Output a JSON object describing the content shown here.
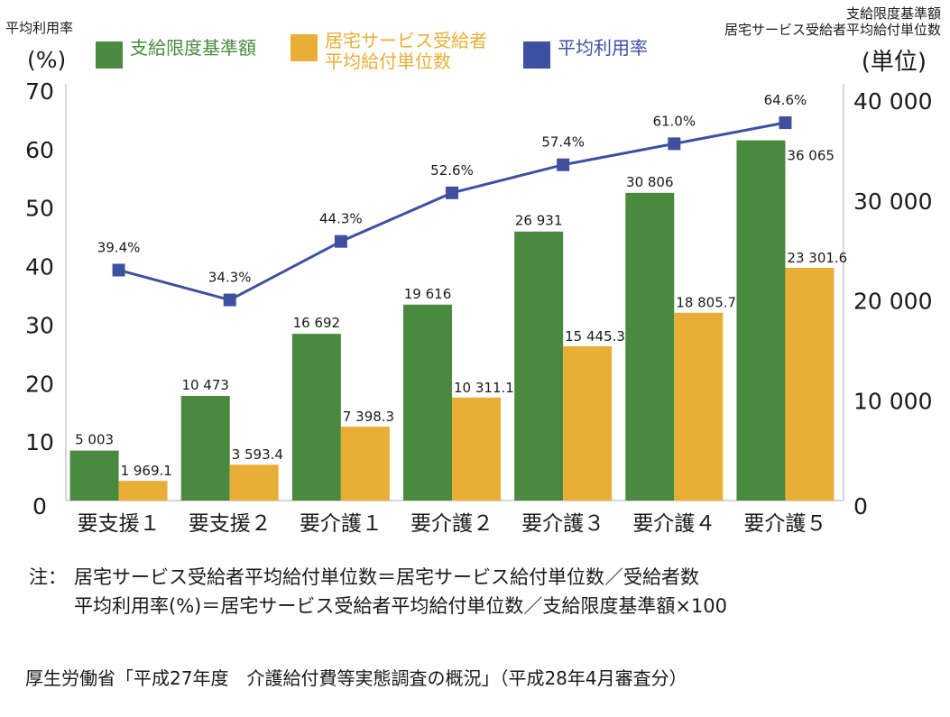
{
  "header": {
    "left_axis_title": "平均利用率",
    "left_axis_unit": "(%)",
    "right_axis_title_line1": "支給限度基準額",
    "right_axis_title_line2": "居宅サービス受給者平均給付単位数",
    "right_axis_unit": "(単位)"
  },
  "legend": [
    {
      "label": "支給限度基準額",
      "color": "#4a8a3f"
    },
    {
      "label": "居宅サービス受給者\n平均給付単位数",
      "color": "#e9ae36"
    },
    {
      "label": "平均利用率",
      "color": "#3f50a0"
    }
  ],
  "chart_data": {
    "type": "bar",
    "categories": [
      "要支援１",
      "要支援２",
      "要介護１",
      "要介護２",
      "要介護３",
      "要介護４",
      "要介護５"
    ],
    "series": [
      {
        "name": "支給限度基準額",
        "axis": "right",
        "chart": "bar",
        "color": "#4a8a3f",
        "values": [
          5003,
          10473,
          16692,
          19616,
          26931,
          30806,
          36065
        ],
        "labels": [
          "5 003",
          "10 473",
          "16 692",
          "19 616",
          "26 931",
          "30 806",
          "36 065"
        ]
      },
      {
        "name": "居宅サービス受給者平均給付単位数",
        "axis": "right",
        "chart": "bar",
        "color": "#e9ae36",
        "values": [
          1969.1,
          3593.4,
          7398.3,
          10311.1,
          15445.3,
          18805.7,
          23301.6
        ],
        "labels": [
          "1 969.1",
          "3 593.4",
          "7 398.3",
          "10 311.1",
          "15 445.3",
          "18 805.7",
          "23 301.6"
        ]
      },
      {
        "name": "平均利用率",
        "axis": "left",
        "chart": "line",
        "color": "#3f50a0",
        "values": [
          39.4,
          34.3,
          44.3,
          52.6,
          57.4,
          61.0,
          64.6
        ],
        "labels": [
          "39.4%",
          "34.3%",
          "44.3%",
          "52.6%",
          "57.4%",
          "61.0%",
          "64.6%"
        ]
      }
    ],
    "y_left": {
      "ylim": [
        0,
        70
      ],
      "ticks": [
        0,
        10,
        20,
        30,
        40,
        50,
        60,
        70
      ],
      "tick_labels": [
        "0",
        "10",
        "20",
        "30",
        "40",
        "50",
        "60",
        "70"
      ]
    },
    "y_right": {
      "ylim": [
        0,
        40000
      ],
      "ticks": [
        0,
        10000,
        20000,
        30000,
        40000
      ],
      "tick_labels": [
        "0",
        "10 000",
        "20 000",
        "30 000",
        "40 000"
      ]
    },
    "grid": false,
    "legend_position": "top"
  },
  "notes": {
    "prefix": "注：",
    "line1": "居宅サービス受給者平均給付単位数＝居宅サービス給付単位数／受給者数",
    "line2": "平均利用率(%)＝居宅サービス受給者平均給付単位数／支給限度基準額×100"
  },
  "source": "厚生労働省「平成27年度　介護給付費等実態調査の概況」（平成28年4月審査分）"
}
